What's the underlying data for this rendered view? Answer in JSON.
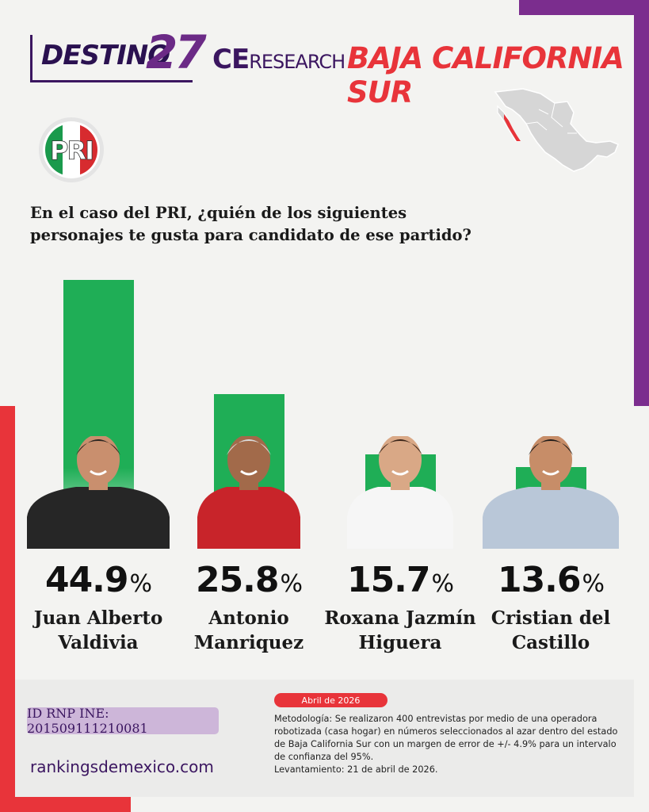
{
  "header": {
    "brand_destino": "DESTINO",
    "brand_number": "27",
    "research_ce": "CE",
    "research_word": "RESEARCH",
    "state": "BAJA CALIFORNIA SUR"
  },
  "party": {
    "logo_text": "PRI"
  },
  "question": "En el caso del PRI, ¿quién de los siguientes personajes te gusta para candidato de ese partido?",
  "chart_data": {
    "type": "bar",
    "categories": [
      "Juan Alberto Valdivia",
      "Antonio Manriquez",
      "Roxana Jazmín Higuera",
      "Cristian del Castillo"
    ],
    "values": [
      44.9,
      25.8,
      15.7,
      13.6
    ],
    "value_labels": [
      "44.9",
      "25.8",
      "15.7",
      "13.6"
    ],
    "unit": "%",
    "name_lines": [
      [
        "Juan Alberto",
        "Valdivia"
      ],
      [
        "Antonio",
        "Manriquez"
      ],
      [
        "Roxana Jazmín",
        "Higuera"
      ],
      [
        "Cristian del",
        "Castillo"
      ]
    ],
    "ylim": [
      0,
      44.9
    ],
    "grid": false,
    "bar_color": "#1fae56"
  },
  "footer": {
    "rnp_id": "ID RNP INE: 201509111210081",
    "website": "rankingsdemexico.com",
    "date_badge": "Abril de 2026",
    "methodology": "Metodología: Se realizaron 400 entrevistas por medio de una operadora robotizada (casa hogar) en números seleccionados al azar dentro del estado de Baja California Sur con un margen de error de +/- 4.9% para un intervalo de confianza del 95%.",
    "survey_date": "Levantamiento: 21 de abril de 2026."
  },
  "colors": {
    "purple": "#7b2d8e",
    "red": "#e8343a",
    "green": "#1fae56"
  }
}
